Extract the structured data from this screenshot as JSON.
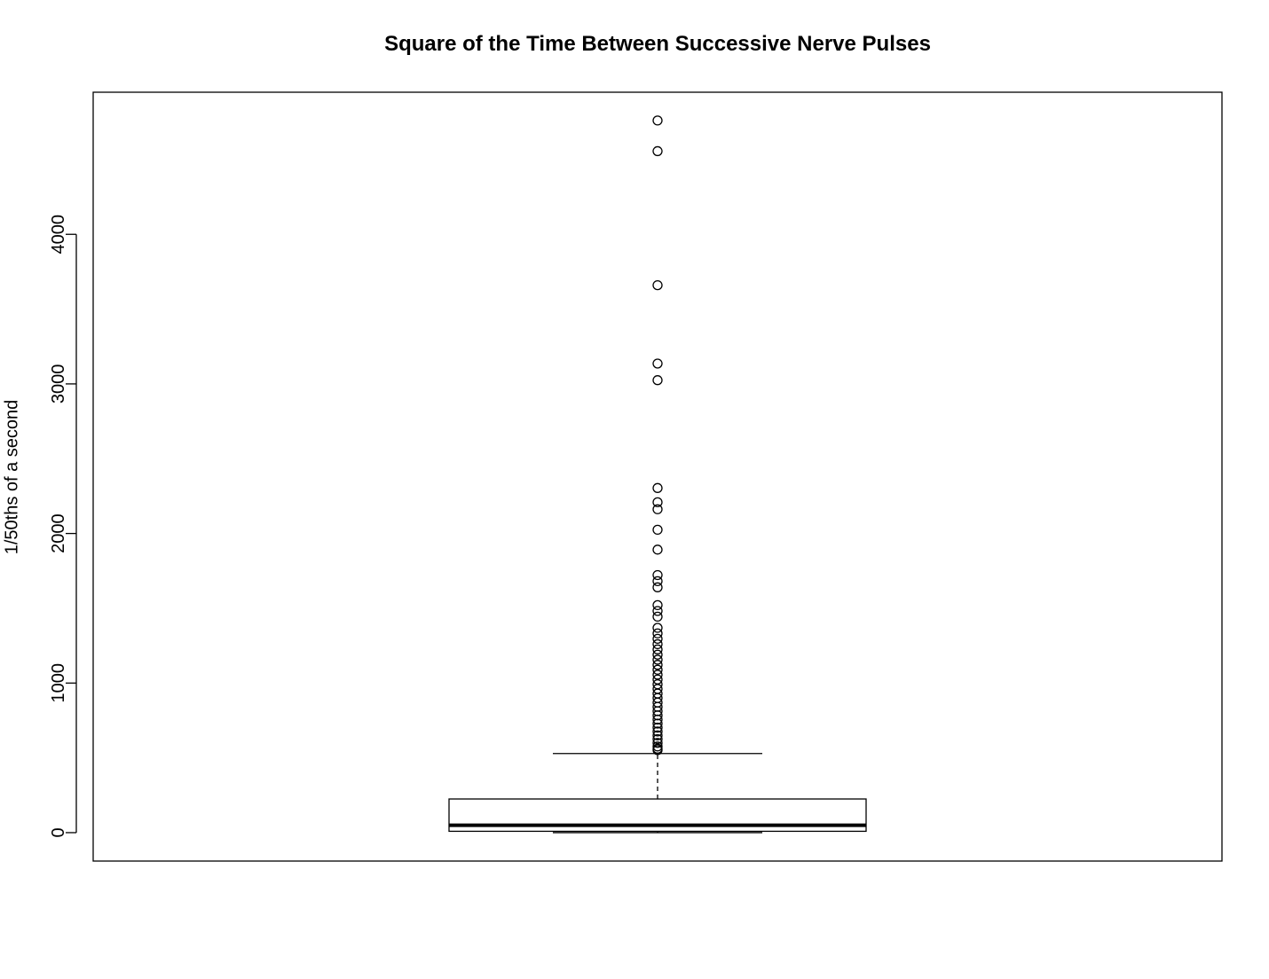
{
  "chart_data": {
    "type": "box",
    "title": "Square of the Time Between Successive Nerve Pulses",
    "xlabel": "",
    "ylabel": "1/50ths of a second",
    "ylim": [
      -190,
      4950
    ],
    "yticks": [
      0,
      1000,
      2000,
      3000,
      4000
    ],
    "grid": false,
    "legend": "none",
    "box": {
      "whisker_low": 0,
      "q1": 9,
      "median": 49,
      "q3": 225,
      "whisker_high": 529
    },
    "outliers": [
      4761,
      4556,
      3660,
      3136,
      3025,
      2304,
      2209,
      2162,
      2025,
      1892,
      1722,
      1681,
      1640,
      1521,
      1482,
      1444,
      1369,
      1332,
      1296,
      1260,
      1225,
      1190,
      1156,
      1122,
      1089,
      1056,
      1024,
      992,
      961,
      930,
      900,
      870,
      841,
      812,
      784,
      756,
      729,
      702,
      676,
      650,
      625,
      600,
      576,
      561,
      552
    ]
  }
}
